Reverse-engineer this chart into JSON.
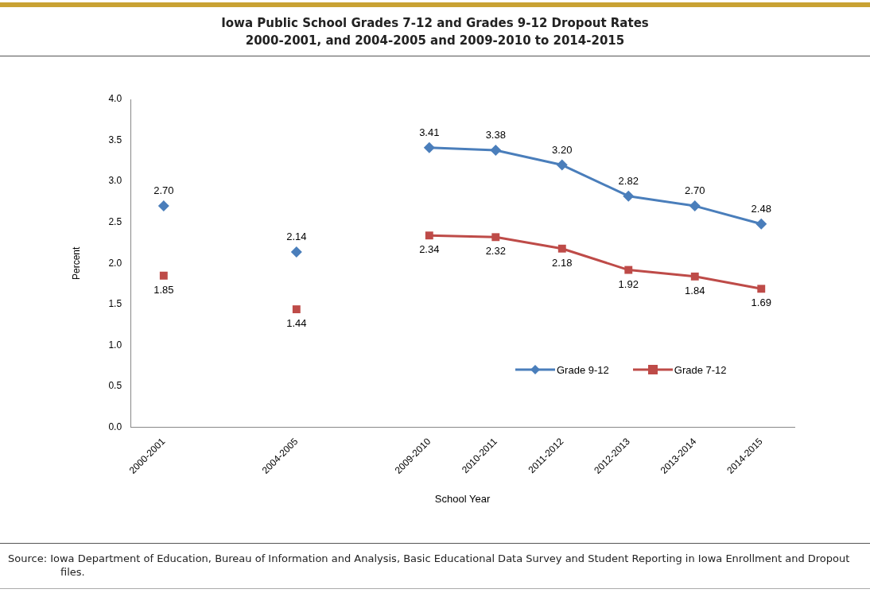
{
  "chart_data": {
    "type": "line",
    "title": "Iowa Public School Grades 7-12 and Grades 9-12 Dropout Rates\n2000-2001, and 2004-2005 and 2009-2010 to 2014-2015",
    "xlabel": "School Year",
    "ylabel": "Percent",
    "categories": [
      "2000-2001",
      null,
      "2004-2005",
      null,
      "2009-2010",
      "2010-2011",
      "2011-2012",
      "2012-2013",
      "2013-2014",
      "2014-2015"
    ],
    "series": [
      {
        "name": "Grade 9-12",
        "color": "#4a7ebb",
        "marker": "diamond",
        "values": [
          2.7,
          null,
          2.14,
          null,
          3.41,
          3.38,
          3.2,
          2.82,
          2.7,
          2.48
        ],
        "value_labels": [
          "2.70",
          null,
          "2.14",
          null,
          "3.41",
          "3.38",
          "3.20",
          "2.82",
          "2.70",
          "2.48"
        ]
      },
      {
        "name": "Grade 7-12",
        "color": "#be4b48",
        "marker": "square",
        "values": [
          1.85,
          null,
          1.44,
          null,
          2.34,
          2.32,
          2.18,
          1.92,
          1.84,
          1.69
        ],
        "value_labels": [
          "1.85",
          null,
          "1.44",
          null,
          "2.34",
          "2.32",
          "2.18",
          "1.92",
          "1.84",
          "1.69"
        ]
      }
    ],
    "ylim": [
      0,
      4
    ],
    "yticks": [
      {
        "value": 0,
        "label": "0.0"
      },
      {
        "value": 0.5,
        "label": "0.5"
      },
      {
        "value": 1,
        "label": "1.0"
      },
      {
        "value": 1.5,
        "label": "1.5"
      },
      {
        "value": 2,
        "label": "2.0"
      },
      {
        "value": 2.5,
        "label": "2.5"
      },
      {
        "value": 3,
        "label": "3.0"
      },
      {
        "value": 3.5,
        "label": "3.5"
      },
      {
        "value": 4,
        "label": "4.0"
      }
    ],
    "grid": false,
    "legend": "bottom right",
    "line_style": "solid",
    "annotations": [
      "Source:  Iowa Department of Education, Bureau of Information and Analysis, Basic Educational Data Survey and Student Reporting in Iowa Enrollment and Dropout files."
    ]
  }
}
